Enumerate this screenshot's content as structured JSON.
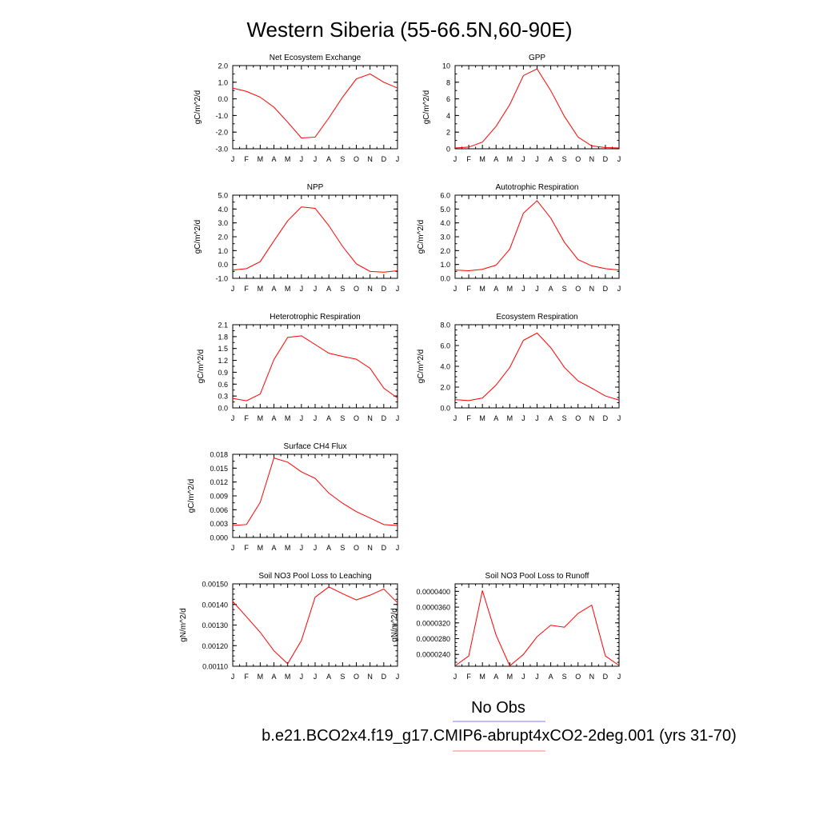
{
  "page": {
    "title": "Western Siberia (55-66.5N,60-90E)",
    "legend": [
      {
        "label": "No Obs",
        "color": "#7b7bff"
      },
      {
        "label": "b.e21.BCO2x4.f19_g17.CMIP6-abrupt4xCO2-2deg.001 (yrs 31-70)",
        "color": "#ff7b7b"
      }
    ]
  },
  "chart_data": [
    {
      "type": "line",
      "title": "Net Ecosystem Exchange",
      "ylabel": "gC/m^2/d",
      "xlabel": "",
      "categories": [
        "J",
        "F",
        "M",
        "A",
        "M",
        "J",
        "J",
        "A",
        "S",
        "O",
        "N",
        "D",
        "J"
      ],
      "ylim": [
        -3.0,
        2.0
      ],
      "yticks": [
        -3.0,
        -2.0,
        -1.0,
        0.0,
        1.0,
        2.0
      ],
      "ytick_labels": [
        "-3.0",
        "-2.0",
        "-1.0",
        "0.0",
        "1.0",
        "2.0"
      ],
      "series": [
        {
          "color": "#ff0000",
          "values": [
            0.65,
            0.45,
            0.1,
            -0.5,
            -1.4,
            -2.35,
            -2.3,
            -1.15,
            0.1,
            1.2,
            1.5,
            1.0,
            0.65
          ]
        }
      ]
    },
    {
      "type": "line",
      "title": "GPP",
      "ylabel": "gC/m^2/d",
      "xlabel": "",
      "categories": [
        "J",
        "F",
        "M",
        "A",
        "M",
        "J",
        "J",
        "A",
        "S",
        "O",
        "N",
        "D",
        "J"
      ],
      "ylim": [
        0,
        10
      ],
      "yticks": [
        0,
        2,
        4,
        6,
        8,
        10
      ],
      "ytick_labels": [
        "0",
        "2",
        "4",
        "6",
        "8",
        "10"
      ],
      "series": [
        {
          "color": "#ff0000",
          "values": [
            0.1,
            0.2,
            0.8,
            2.7,
            5.3,
            8.8,
            9.6,
            7.0,
            3.9,
            1.4,
            0.35,
            0.15,
            0.1
          ]
        }
      ]
    },
    {
      "type": "line",
      "title": "NPP",
      "ylabel": "gC/m^2/d",
      "xlabel": "",
      "categories": [
        "J",
        "F",
        "M",
        "A",
        "M",
        "J",
        "J",
        "A",
        "S",
        "O",
        "N",
        "D",
        "J"
      ],
      "ylim": [
        -1.0,
        5.0
      ],
      "yticks": [
        -1.0,
        0.0,
        1.0,
        2.0,
        3.0,
        4.0,
        5.0
      ],
      "ytick_labels": [
        "-1.0",
        "0.0",
        "1.0",
        "2.0",
        "3.0",
        "4.0",
        "5.0"
      ],
      "series": [
        {
          "color": "#ff0000",
          "values": [
            -0.4,
            -0.3,
            0.2,
            1.7,
            3.15,
            4.15,
            4.05,
            2.8,
            1.3,
            0.05,
            -0.5,
            -0.55,
            -0.45
          ]
        }
      ]
    },
    {
      "type": "line",
      "title": "Autotrophic Respiration",
      "ylabel": "gC/m^2/d",
      "xlabel": "",
      "categories": [
        "J",
        "F",
        "M",
        "A",
        "M",
        "J",
        "J",
        "A",
        "S",
        "O",
        "N",
        "D",
        "J"
      ],
      "ylim": [
        0.0,
        6.0
      ],
      "yticks": [
        0.0,
        1.0,
        2.0,
        3.0,
        4.0,
        5.0,
        6.0
      ],
      "ytick_labels": [
        "0.0",
        "1.0",
        "2.0",
        "3.0",
        "4.0",
        "5.0",
        "6.0"
      ],
      "series": [
        {
          "color": "#ff0000",
          "values": [
            0.6,
            0.55,
            0.65,
            0.95,
            2.1,
            4.7,
            5.6,
            4.35,
            2.6,
            1.35,
            0.9,
            0.7,
            0.6
          ]
        }
      ]
    },
    {
      "type": "line",
      "title": "Heterotrophic Respiration",
      "ylabel": "gC/m^2/d",
      "xlabel": "",
      "categories": [
        "J",
        "F",
        "M",
        "A",
        "M",
        "J",
        "J",
        "A",
        "S",
        "O",
        "N",
        "D",
        "J"
      ],
      "ylim": [
        0.0,
        2.1
      ],
      "yticks": [
        0.0,
        0.3,
        0.6,
        0.9,
        1.2,
        1.5,
        1.8,
        2.1
      ],
      "ytick_labels": [
        "0.0",
        "0.3",
        "0.6",
        "0.9",
        "1.2",
        "1.5",
        "1.8",
        "2.1"
      ],
      "series": [
        {
          "color": "#ff0000",
          "values": [
            0.24,
            0.18,
            0.35,
            1.22,
            1.78,
            1.82,
            1.6,
            1.38,
            1.3,
            1.23,
            1.0,
            0.5,
            0.25
          ]
        }
      ]
    },
    {
      "type": "line",
      "title": "Ecosystem Respiration",
      "ylabel": "gC/m^2/d",
      "xlabel": "",
      "categories": [
        "J",
        "F",
        "M",
        "A",
        "M",
        "J",
        "J",
        "A",
        "S",
        "O",
        "N",
        "D",
        "J"
      ],
      "ylim": [
        0.0,
        8.0
      ],
      "yticks": [
        0.0,
        2.0,
        4.0,
        6.0,
        8.0
      ],
      "ytick_labels": [
        "0.0",
        "2.0",
        "4.0",
        "6.0",
        "8.0"
      ],
      "series": [
        {
          "color": "#ff0000",
          "values": [
            0.8,
            0.7,
            0.95,
            2.2,
            3.9,
            6.5,
            7.2,
            5.8,
            3.9,
            2.6,
            1.9,
            1.15,
            0.75
          ]
        }
      ]
    },
    {
      "type": "line",
      "title": "Surface CH4 Flux",
      "ylabel": "gC/m^2/d",
      "xlabel": "",
      "categories": [
        "J",
        "F",
        "M",
        "A",
        "M",
        "J",
        "J",
        "A",
        "S",
        "O",
        "N",
        "D",
        "J"
      ],
      "ylim": [
        0.0,
        0.018
      ],
      "yticks": [
        0.0,
        0.003,
        0.006,
        0.009,
        0.012,
        0.015,
        0.018
      ],
      "ytick_labels": [
        "0.000",
        "0.003",
        "0.006",
        "0.009",
        "0.012",
        "0.015",
        "0.018"
      ],
      "series": [
        {
          "color": "#ff0000",
          "values": [
            0.0026,
            0.0028,
            0.0076,
            0.0172,
            0.0163,
            0.0142,
            0.0128,
            0.0096,
            0.0074,
            0.0056,
            0.0042,
            0.0028,
            0.0026
          ]
        }
      ]
    },
    {
      "type": "line",
      "title": "Soil NO3 Pool Loss to Leaching",
      "ylabel": "gN/m^2/d",
      "xlabel": "",
      "categories": [
        "J",
        "F",
        "M",
        "A",
        "M",
        "J",
        "J",
        "A",
        "S",
        "O",
        "N",
        "D",
        "J"
      ],
      "ylim": [
        0.0011,
        0.0015
      ],
      "yticks": [
        0.0011,
        0.0012,
        0.0013,
        0.0014,
        0.0015
      ],
      "ytick_labels": [
        "0.00110",
        "0.00120",
        "0.00130",
        "0.00140",
        "0.00150"
      ],
      "series": [
        {
          "color": "#ff0000",
          "values": [
            0.001415,
            0.00134,
            0.001265,
            0.001175,
            0.001112,
            0.001225,
            0.001435,
            0.001485,
            0.001452,
            0.001422,
            0.001445,
            0.001475,
            0.001408
          ]
        }
      ]
    },
    {
      "type": "line",
      "title": "Soil NO3 Pool Loss to Runoff",
      "ylabel": "gN/m^2/d",
      "xlabel": "",
      "categories": [
        "J",
        "F",
        "M",
        "A",
        "M",
        "J",
        "J",
        "A",
        "S",
        "O",
        "N",
        "D",
        "J"
      ],
      "ylim": [
        2.1e-05,
        4.19e-05
      ],
      "yticks": [
        2.4e-05,
        2.8e-05,
        3.2e-05,
        3.6e-05,
        4e-05
      ],
      "ytick_labels": [
        "0.0000240",
        "0.0000280",
        "0.0000320",
        "0.0000360",
        "0.0000400"
      ],
      "series": [
        {
          "color": "#ff0000",
          "values": [
            2.11e-05,
            2.36e-05,
            4.02e-05,
            2.89e-05,
            2.11e-05,
            2.4e-05,
            2.85e-05,
            3.14e-05,
            3.09e-05,
            3.44e-05,
            3.65e-05,
            2.36e-05,
            2.12e-05
          ]
        }
      ]
    }
  ]
}
